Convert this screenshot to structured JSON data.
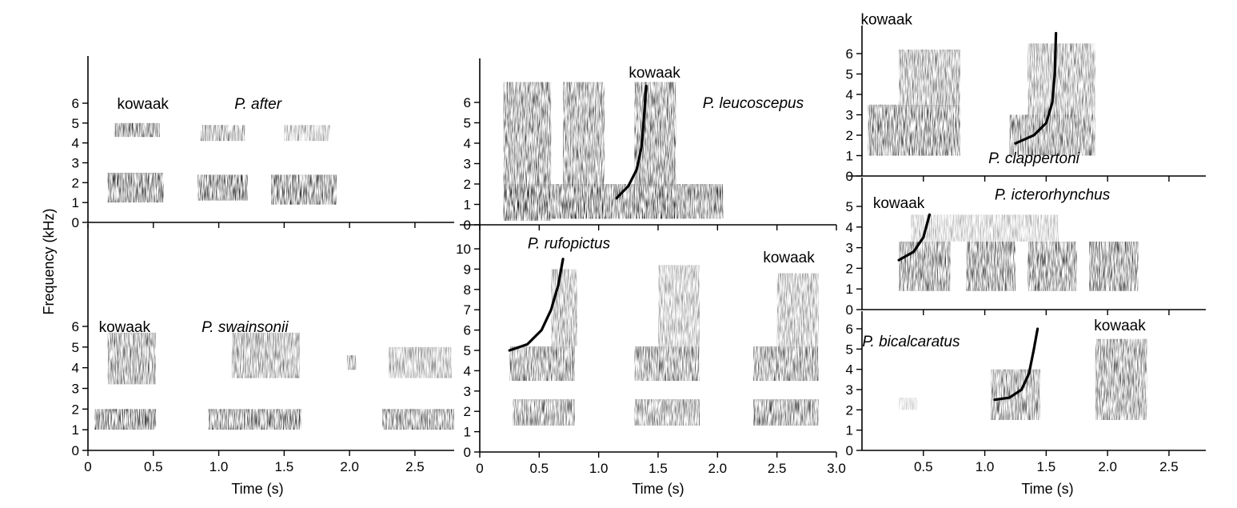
{
  "figure": {
    "ylabel": "Frequency (kHz)",
    "xlabel": "Time (s)",
    "call_label": "kowaak"
  },
  "chart_data": [
    {
      "type": "heatmap",
      "id": "after",
      "species": "P. after",
      "ylim": [
        0,
        7
      ],
      "yticks": [
        0,
        1,
        2,
        3,
        4,
        5,
        6
      ],
      "xlim": [
        0,
        2.8
      ],
      "xticks": [],
      "shared_x_with": "swainsonii",
      "energy": [
        {
          "t": [
            0.15,
            0.58
          ],
          "f": [
            1.0,
            2.5
          ],
          "d": 0.9
        },
        {
          "t": [
            0.2,
            0.55
          ],
          "f": [
            4.3,
            5.0
          ],
          "d": 0.85
        },
        {
          "t": [
            0.84,
            1.22
          ],
          "f": [
            1.1,
            2.4
          ],
          "d": 0.9
        },
        {
          "t": [
            0.86,
            1.2
          ],
          "f": [
            4.1,
            4.9
          ],
          "d": 0.6
        },
        {
          "t": [
            1.4,
            1.9
          ],
          "f": [
            0.9,
            2.4
          ],
          "d": 0.85
        },
        {
          "t": [
            1.5,
            1.85
          ],
          "f": [
            4.1,
            4.9
          ],
          "d": 0.45
        }
      ],
      "traces": [],
      "kowaak_at": [
        0.42,
        6.0
      ],
      "species_at": [
        1.3,
        6.0
      ]
    },
    {
      "type": "heatmap",
      "id": "swainsonii",
      "species": "P. swainsonii",
      "ylim": [
        0,
        7
      ],
      "yticks": [
        0,
        1,
        2,
        3,
        4,
        5,
        6
      ],
      "xlim": [
        0,
        2.8
      ],
      "xticks": [
        0,
        0.5,
        1.0,
        1.5,
        2.0,
        2.5
      ],
      "xticklabels": [
        "0",
        "0.5",
        "1.0",
        "1.5",
        "2.0",
        "2.5"
      ],
      "energy": [
        {
          "t": [
            0.05,
            0.52
          ],
          "f": [
            1.0,
            2.0
          ],
          "d": 0.9
        },
        {
          "t": [
            0.15,
            0.52
          ],
          "f": [
            3.2,
            5.7
          ],
          "d": 0.7
        },
        {
          "t": [
            0.92,
            1.63
          ],
          "f": [
            1.0,
            2.0
          ],
          "d": 0.85
        },
        {
          "t": [
            1.1,
            1.62
          ],
          "f": [
            3.5,
            5.7
          ],
          "d": 0.6
        },
        {
          "t": [
            1.98,
            2.05
          ],
          "f": [
            3.9,
            4.6
          ],
          "d": 0.7
        },
        {
          "t": [
            2.25,
            2.8
          ],
          "f": [
            1.0,
            2.0
          ],
          "d": 0.8
        },
        {
          "t": [
            2.3,
            2.78
          ],
          "f": [
            3.5,
            5.0
          ],
          "d": 0.5
        }
      ],
      "traces": [],
      "kowaak_at": [
        0.28,
        6.0
      ],
      "species_at": [
        1.2,
        6.0
      ]
    },
    {
      "type": "heatmap",
      "id": "leucoscepus",
      "species": "P. leucoscepus",
      "ylim": [
        0,
        7
      ],
      "yticks": [
        0,
        1,
        2,
        3,
        4,
        5,
        6
      ],
      "xlim": [
        0,
        3.0
      ],
      "xticks": [],
      "shared_x_with": "rufopictus",
      "energy": [
        {
          "t": [
            0.2,
            0.6
          ],
          "f": [
            0.2,
            7.0
          ],
          "d": 0.75
        },
        {
          "t": [
            0.7,
            1.05
          ],
          "f": [
            0.3,
            7.0
          ],
          "d": 0.7
        },
        {
          "t": [
            1.3,
            1.65
          ],
          "f": [
            0.3,
            7.0
          ],
          "d": 0.75
        },
        {
          "t": [
            0.2,
            2.05
          ],
          "f": [
            0.3,
            2.0
          ],
          "d": 0.8
        }
      ],
      "traces": [
        [
          [
            1.15,
            1.3
          ],
          [
            1.25,
            1.9
          ],
          [
            1.32,
            2.7
          ],
          [
            1.36,
            3.8
          ],
          [
            1.38,
            5.2
          ],
          [
            1.4,
            6.8
          ]
        ]
      ],
      "kowaak_at": [
        1.47,
        7.5
      ],
      "species_at": [
        2.3,
        6.0
      ]
    },
    {
      "type": "heatmap",
      "id": "rufopictus",
      "species": "P. rufopictus",
      "ylim": [
        0,
        11
      ],
      "yticks": [
        0,
        1,
        2,
        3,
        4,
        5,
        6,
        7,
        8,
        9,
        10
      ],
      "xlim": [
        0,
        3.0
      ],
      "xticks": [
        0,
        0.5,
        1.0,
        1.5,
        2.0,
        2.5,
        3.0
      ],
      "xticklabels": [
        "0",
        "0.5",
        "1.0",
        "1.5",
        "2.0",
        "2.5",
        "3.0"
      ],
      "energy": [
        {
          "t": [
            0.25,
            0.8
          ],
          "f": [
            3.5,
            5.2
          ],
          "d": 0.75
        },
        {
          "t": [
            0.6,
            0.82
          ],
          "f": [
            5.2,
            9.0
          ],
          "d": 0.55
        },
        {
          "t": [
            0.28,
            0.8
          ],
          "f": [
            1.3,
            2.6
          ],
          "d": 0.7
        },
        {
          "t": [
            1.3,
            1.85
          ],
          "f": [
            3.5,
            5.2
          ],
          "d": 0.7
        },
        {
          "t": [
            1.5,
            1.85
          ],
          "f": [
            5.2,
            9.2
          ],
          "d": 0.45
        },
        {
          "t": [
            1.3,
            1.85
          ],
          "f": [
            1.3,
            2.6
          ],
          "d": 0.7
        },
        {
          "t": [
            2.3,
            2.85
          ],
          "f": [
            3.5,
            5.2
          ],
          "d": 0.75
        },
        {
          "t": [
            2.5,
            2.85
          ],
          "f": [
            5.2,
            8.8
          ],
          "d": 0.5
        },
        {
          "t": [
            2.3,
            2.85
          ],
          "f": [
            1.3,
            2.6
          ],
          "d": 0.75
        }
      ],
      "traces": [
        [
          [
            0.25,
            5.0
          ],
          [
            0.4,
            5.3
          ],
          [
            0.52,
            6.0
          ],
          [
            0.6,
            7.0
          ],
          [
            0.66,
            8.2
          ],
          [
            0.7,
            9.5
          ]
        ]
      ],
      "kowaak_at": [
        2.6,
        9.6
      ],
      "species_at": [
        0.75,
        10.3
      ]
    },
    {
      "type": "heatmap",
      "id": "clappertoni",
      "species": "P. clappertoni",
      "ylim": [
        0,
        7
      ],
      "yticks": [
        0,
        1,
        2,
        3,
        4,
        5,
        6
      ],
      "xlim": [
        0,
        2.8
      ],
      "xticks": [],
      "shared_x_with": "bicalcaratus",
      "energy": [
        {
          "t": [
            0.05,
            0.8
          ],
          "f": [
            1.0,
            3.5
          ],
          "d": 0.8
        },
        {
          "t": [
            0.3,
            0.8
          ],
          "f": [
            3.5,
            6.2
          ],
          "d": 0.6
        },
        {
          "t": [
            1.2,
            1.9
          ],
          "f": [
            1.0,
            3.0
          ],
          "d": 0.75
        },
        {
          "t": [
            1.35,
            1.9
          ],
          "f": [
            3.0,
            6.5
          ],
          "d": 0.55
        }
      ],
      "traces": [
        [
          [
            1.25,
            1.6
          ],
          [
            1.4,
            2.0
          ],
          [
            1.5,
            2.6
          ],
          [
            1.55,
            3.6
          ],
          [
            1.57,
            5.0
          ],
          [
            1.58,
            7.0
          ]
        ]
      ],
      "kowaak_at": [
        0.2,
        7.7
      ],
      "species_at": [
        1.4,
        0.9
      ]
    },
    {
      "type": "heatmap",
      "id": "icterorhynchus",
      "species": "P. icterorhynchus",
      "ylim": [
        0,
        5
      ],
      "yticks": [
        0,
        1,
        2,
        3,
        4,
        5
      ],
      "xlim": [
        0,
        2.8
      ],
      "xticks": [],
      "shared_x_with": "bicalcaratus",
      "energy": [
        {
          "t": [
            0.3,
            0.72
          ],
          "f": [
            0.9,
            3.3
          ],
          "d": 0.8
        },
        {
          "t": [
            0.85,
            1.25
          ],
          "f": [
            0.9,
            3.3
          ],
          "d": 0.8
        },
        {
          "t": [
            1.35,
            1.75
          ],
          "f": [
            0.9,
            3.3
          ],
          "d": 0.8
        },
        {
          "t": [
            1.85,
            2.25
          ],
          "f": [
            0.9,
            3.3
          ],
          "d": 0.8
        },
        {
          "t": [
            0.4,
            1.6
          ],
          "f": [
            3.3,
            4.6
          ],
          "d": 0.35
        }
      ],
      "traces": [
        [
          [
            0.3,
            2.4
          ],
          [
            0.42,
            2.8
          ],
          [
            0.5,
            3.5
          ],
          [
            0.55,
            4.6
          ]
        ]
      ],
      "kowaak_at": [
        0.3,
        5.2
      ],
      "species_at": [
        1.55,
        5.6
      ]
    },
    {
      "type": "heatmap",
      "id": "bicalcaratus",
      "species": "P. bicalcaratus",
      "ylim": [
        0,
        7
      ],
      "yticks": [
        0,
        1,
        2,
        3,
        4,
        5,
        6
      ],
      "xlim": [
        0,
        2.8
      ],
      "xticks": [
        0.5,
        1.0,
        1.5,
        2.0,
        2.5
      ],
      "xticklabels": [
        "0.5",
        "1.0",
        "1.5",
        "2.0",
        "2.5"
      ],
      "energy": [
        {
          "t": [
            1.05,
            1.45
          ],
          "f": [
            1.5,
            4.0
          ],
          "d": 0.7
        },
        {
          "t": [
            1.9,
            2.32
          ],
          "f": [
            1.5,
            5.5
          ],
          "d": 0.7
        },
        {
          "t": [
            0.3,
            0.45
          ],
          "f": [
            2.0,
            2.6
          ],
          "d": 0.25
        }
      ],
      "traces": [
        [
          [
            1.08,
            2.5
          ],
          [
            1.2,
            2.6
          ],
          [
            1.3,
            3.0
          ],
          [
            1.36,
            3.8
          ],
          [
            1.4,
            5.0
          ],
          [
            1.43,
            6.0
          ]
        ]
      ],
      "kowaak_at": [
        2.1,
        6.2
      ],
      "species_at": [
        0.4,
        5.4
      ]
    }
  ]
}
